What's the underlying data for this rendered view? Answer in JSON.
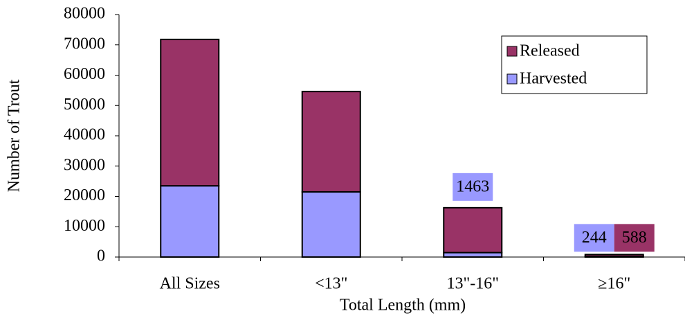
{
  "chart_data": {
    "type": "stacked_bar",
    "categories": [
      "All Sizes",
      "<13\"",
      "13\"-16\"",
      "≥16\""
    ],
    "series": [
      {
        "name": "Harvested",
        "color": "#9999ff",
        "values": [
          23500,
          21500,
          1463,
          244
        ],
        "value_labels": [
          null,
          null,
          "1463",
          "244"
        ]
      },
      {
        "name": "Released",
        "color": "#993366",
        "values": [
          48300,
          33100,
          14800,
          588
        ],
        "value_labels": [
          null,
          null,
          null,
          "588"
        ]
      }
    ],
    "ylim": [
      0,
      80000
    ],
    "yticks": [
      0,
      10000,
      20000,
      30000,
      40000,
      50000,
      60000,
      70000,
      80000
    ],
    "y_label": "Number of Trout",
    "x_label": "Total Length (mm)",
    "grid": false,
    "legend": "upper right"
  }
}
